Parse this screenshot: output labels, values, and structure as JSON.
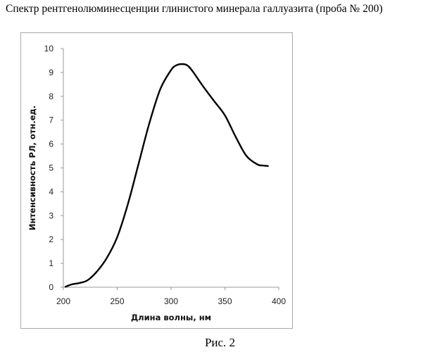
{
  "document": {
    "title": "Спектр рентгенолюминесценции глинистого минерала галлуазита (проба № 200)",
    "caption": "Рис. 2"
  },
  "chart_data": {
    "type": "line",
    "xlabel": "Длина волны, нм",
    "ylabel": "Интенсивность РЛ, отн.ед.",
    "xlim": [
      200,
      400
    ],
    "ylim": [
      0,
      10
    ],
    "xticks": [
      200,
      250,
      300,
      350,
      400
    ],
    "yticks": [
      0,
      1,
      2,
      3,
      4,
      5,
      6,
      7,
      8,
      9,
      10
    ],
    "grid": false,
    "legend": "none",
    "series": [
      {
        "color": "#000000",
        "x": [
          202,
          208,
          215,
          222,
          230,
          240,
          250,
          260,
          270,
          280,
          290,
          300,
          305,
          310,
          315,
          320,
          330,
          340,
          350,
          360,
          370,
          380,
          385,
          390
        ],
        "y": [
          0.02,
          0.12,
          0.18,
          0.28,
          0.6,
          1.2,
          2.1,
          3.5,
          5.2,
          6.9,
          8.3,
          9.1,
          9.3,
          9.35,
          9.3,
          9.05,
          8.4,
          7.8,
          7.2,
          6.3,
          5.5,
          5.15,
          5.1,
          5.08
        ]
      }
    ]
  }
}
